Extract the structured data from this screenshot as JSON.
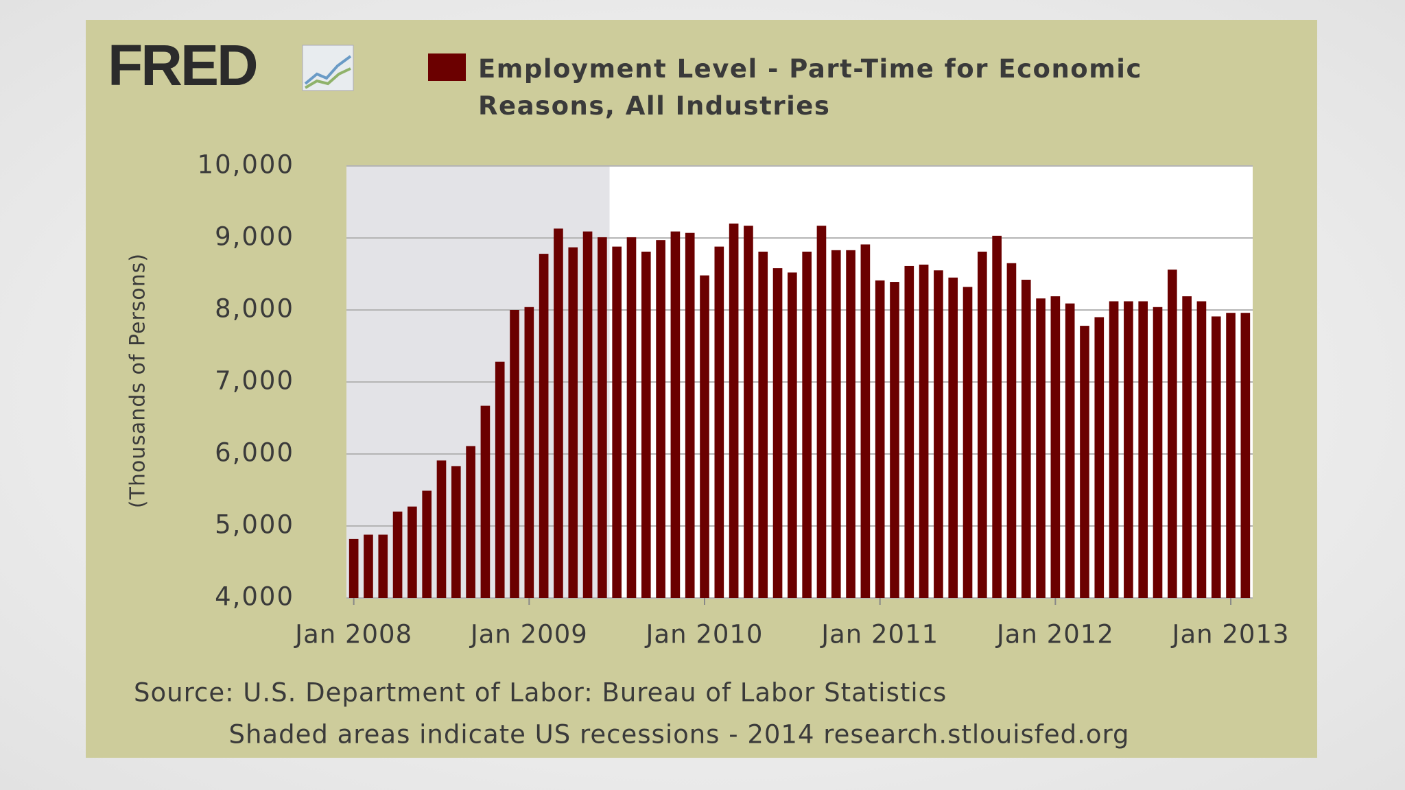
{
  "chart_data": {
    "type": "bar",
    "logo": "FRED",
    "title": "Employment Level - Part-Time for Economic Reasons, All Industries",
    "ylabel": "(Thousands of Persons)",
    "source": "Source: U.S. Department of Labor: Bureau of Labor Statistics",
    "note": "Shaded areas indicate US recessions - 2014 research.stlouisfed.org",
    "color": "#6b0000",
    "categories": [
      "Jan 2008",
      null,
      null,
      null,
      null,
      null,
      null,
      null,
      null,
      null,
      null,
      null,
      "Jan 2009",
      null,
      null,
      null,
      null,
      null,
      null,
      null,
      null,
      null,
      null,
      null,
      "Jan 2010",
      null,
      null,
      null,
      null,
      null,
      null,
      null,
      null,
      null,
      null,
      null,
      "Jan 2011",
      null,
      null,
      null,
      null,
      null,
      null,
      null,
      null,
      null,
      null,
      null,
      "Jan 2012",
      null,
      null,
      null,
      null,
      null,
      null,
      null,
      null,
      null,
      null,
      null,
      "Jan 2013",
      null
    ],
    "values": [
      4820,
      4880,
      4880,
      5200,
      5270,
      5490,
      5910,
      5830,
      6110,
      6670,
      7280,
      8000,
      8040,
      8780,
      9130,
      8870,
      9090,
      9010,
      8880,
      9010,
      8810,
      8970,
      9090,
      9070,
      8480,
      8880,
      9200,
      9170,
      8810,
      8580,
      8520,
      8810,
      9170,
      8830,
      8830,
      8910,
      8410,
      8390,
      8610,
      8630,
      8550,
      8450,
      8320,
      8810,
      9030,
      8650,
      8420,
      8160,
      8190,
      8090,
      7780,
      7900,
      8120,
      8120,
      8120,
      8040,
      8560,
      8190,
      8120,
      7910,
      7960,
      7960
    ],
    "recessions": [
      {
        "start": 0,
        "end": 17
      }
    ],
    "ylim": [
      4000,
      10000
    ],
    "yticks": [
      {
        "value": 4000,
        "label": "4,000"
      },
      {
        "value": 5000,
        "label": "5,000"
      },
      {
        "value": 6000,
        "label": "6,000"
      },
      {
        "value": 7000,
        "label": "7,000"
      },
      {
        "value": 8000,
        "label": "8,000"
      },
      {
        "value": 9000,
        "label": "9,000"
      },
      {
        "value": 10000,
        "label": "10,000"
      }
    ],
    "grid": true
  }
}
